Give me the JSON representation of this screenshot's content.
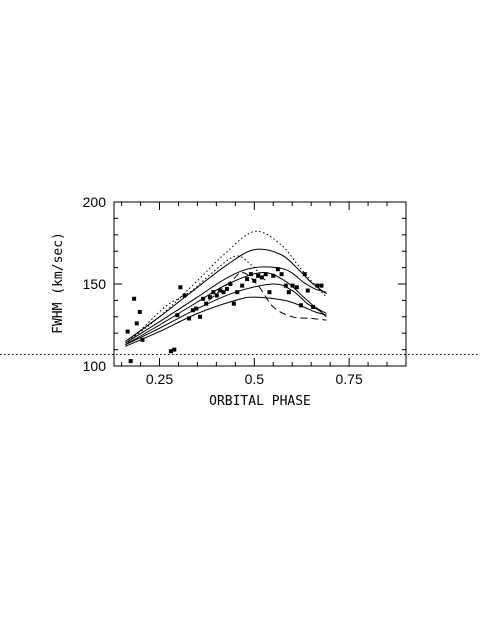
{
  "chart_data": {
    "type": "scatter",
    "xlabel": "ORBITAL PHASE",
    "ylabel": "FWHM (km/sec)",
    "xlim": [
      0.13,
      0.9
    ],
    "ylim": [
      100,
      200
    ],
    "x_ticks": [
      {
        "value": 0.25,
        "label": "0.25"
      },
      {
        "value": 0.5,
        "label": "0.5"
      },
      {
        "value": 0.75,
        "label": "0.75"
      }
    ],
    "y_ticks": [
      {
        "value": 100,
        "label": "100"
      },
      {
        "value": 150,
        "label": "150"
      },
      {
        "value": 200,
        "label": "200"
      }
    ],
    "reference_line": {
      "y": 107,
      "style": "dotted"
    },
    "points": [
      {
        "x": 0.166,
        "y": 121
      },
      {
        "x": 0.174,
        "y": 103
      },
      {
        "x": 0.183,
        "y": 141
      },
      {
        "x": 0.19,
        "y": 126
      },
      {
        "x": 0.198,
        "y": 133
      },
      {
        "x": 0.205,
        "y": 116
      },
      {
        "x": 0.28,
        "y": 109
      },
      {
        "x": 0.289,
        "y": 110
      },
      {
        "x": 0.297,
        "y": 131
      },
      {
        "x": 0.305,
        "y": 148
      },
      {
        "x": 0.316,
        "y": 143
      },
      {
        "x": 0.328,
        "y": 129
      },
      {
        "x": 0.338,
        "y": 134
      },
      {
        "x": 0.347,
        "y": 135
      },
      {
        "x": 0.357,
        "y": 130
      },
      {
        "x": 0.365,
        "y": 141
      },
      {
        "x": 0.373,
        "y": 138
      },
      {
        "x": 0.383,
        "y": 142
      },
      {
        "x": 0.392,
        "y": 145
      },
      {
        "x": 0.401,
        "y": 143
      },
      {
        "x": 0.41,
        "y": 146
      },
      {
        "x": 0.419,
        "y": 145
      },
      {
        "x": 0.428,
        "y": 147
      },
      {
        "x": 0.437,
        "y": 150
      },
      {
        "x": 0.446,
        "y": 138
      },
      {
        "x": 0.455,
        "y": 145
      },
      {
        "x": 0.468,
        "y": 149
      },
      {
        "x": 0.481,
        "y": 153
      },
      {
        "x": 0.491,
        "y": 156
      },
      {
        "x": 0.5,
        "y": 152
      },
      {
        "x": 0.51,
        "y": 155
      },
      {
        "x": 0.52,
        "y": 154
      },
      {
        "x": 0.53,
        "y": 156
      },
      {
        "x": 0.54,
        "y": 145
      },
      {
        "x": 0.55,
        "y": 155
      },
      {
        "x": 0.562,
        "y": 159
      },
      {
        "x": 0.572,
        "y": 156
      },
      {
        "x": 0.583,
        "y": 149
      },
      {
        "x": 0.591,
        "y": 145
      },
      {
        "x": 0.601,
        "y": 149
      },
      {
        "x": 0.612,
        "y": 148
      },
      {
        "x": 0.623,
        "y": 137
      },
      {
        "x": 0.633,
        "y": 156
      },
      {
        "x": 0.641,
        "y": 146
      },
      {
        "x": 0.655,
        "y": 136
      },
      {
        "x": 0.666,
        "y": 149
      },
      {
        "x": 0.677,
        "y": 149
      }
    ],
    "series": [
      {
        "style": "dotted",
        "points": [
          [
            0.16,
            114
          ],
          [
            0.25,
            130
          ],
          [
            0.35,
            152
          ],
          [
            0.42,
            168
          ],
          [
            0.5,
            182
          ],
          [
            0.57,
            174
          ],
          [
            0.62,
            160
          ],
          [
            0.65,
            152
          ],
          [
            0.69,
            142
          ]
        ]
      },
      {
        "style": "solid",
        "points": [
          [
            0.16,
            115
          ],
          [
            0.25,
            130
          ],
          [
            0.35,
            148
          ],
          [
            0.43,
            162
          ],
          [
            0.5,
            171
          ],
          [
            0.57,
            168
          ],
          [
            0.62,
            158
          ],
          [
            0.65,
            151
          ],
          [
            0.69,
            144
          ]
        ]
      },
      {
        "style": "solid",
        "points": [
          [
            0.16,
            114
          ],
          [
            0.25,
            127
          ],
          [
            0.35,
            142
          ],
          [
            0.43,
            154
          ],
          [
            0.5,
            160
          ],
          [
            0.58,
            159
          ],
          [
            0.63,
            151
          ],
          [
            0.66,
            147
          ],
          [
            0.69,
            145
          ]
        ]
      },
      {
        "style": "solid",
        "points": [
          [
            0.16,
            113
          ],
          [
            0.25,
            125
          ],
          [
            0.35,
            139
          ],
          [
            0.43,
            150
          ],
          [
            0.52,
            157
          ],
          [
            0.58,
            152
          ],
          [
            0.63,
            142
          ],
          [
            0.66,
            136
          ],
          [
            0.69,
            132
          ]
        ]
      },
      {
        "style": "solid",
        "points": [
          [
            0.16,
            113
          ],
          [
            0.25,
            123
          ],
          [
            0.35,
            135
          ],
          [
            0.45,
            145
          ],
          [
            0.55,
            150
          ],
          [
            0.6,
            146
          ],
          [
            0.64,
            138
          ],
          [
            0.67,
            134
          ],
          [
            0.69,
            130
          ]
        ]
      },
      {
        "style": "solid",
        "points": [
          [
            0.16,
            112
          ],
          [
            0.25,
            121
          ],
          [
            0.35,
            132
          ],
          [
            0.45,
            140
          ],
          [
            0.5,
            142
          ],
          [
            0.58,
            140
          ],
          [
            0.63,
            136
          ],
          [
            0.66,
            133
          ],
          [
            0.69,
            131
          ]
        ]
      },
      {
        "style": "dashed",
        "points": [
          [
            0.38,
            140
          ],
          [
            0.44,
            152
          ],
          [
            0.47,
            157
          ],
          [
            0.51,
            149
          ],
          [
            0.55,
            136
          ],
          [
            0.6,
            130
          ],
          [
            0.65,
            129
          ],
          [
            0.69,
            128
          ]
        ]
      },
      {
        "style": "dotted",
        "points": [
          [
            0.16,
            113
          ],
          [
            0.21,
            124
          ],
          [
            0.27,
            137
          ],
          [
            0.33,
            145
          ],
          [
            0.39,
            157
          ],
          [
            0.45,
            167
          ],
          [
            0.49,
            162
          ],
          [
            0.53,
            152
          ]
        ]
      }
    ]
  }
}
